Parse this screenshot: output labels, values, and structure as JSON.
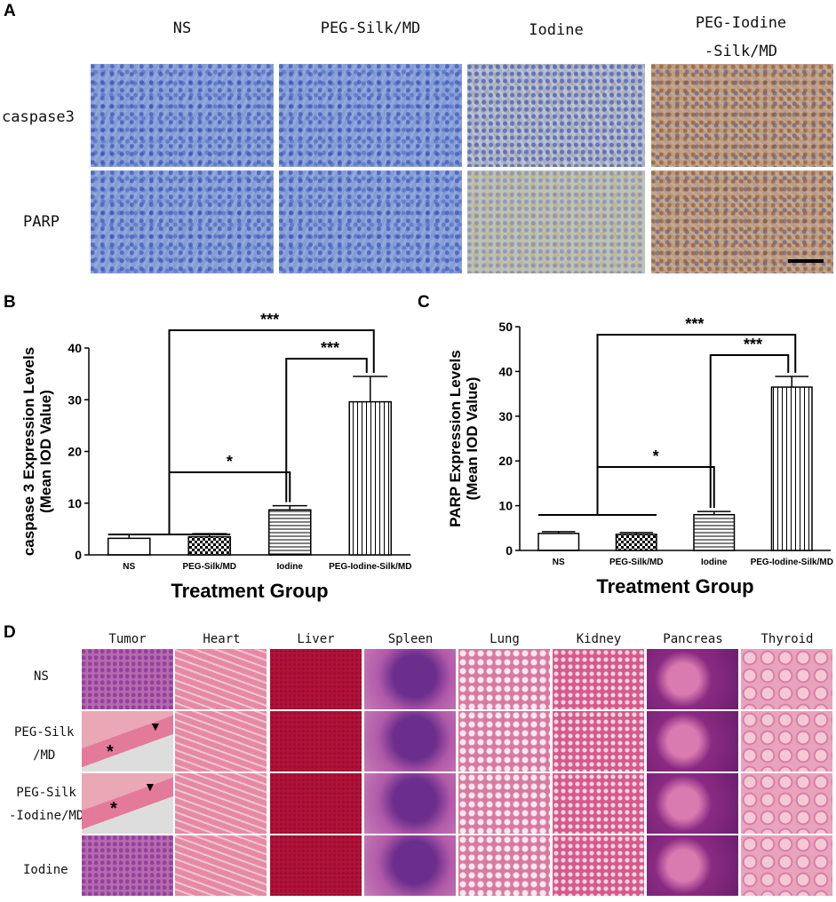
{
  "panel_letters": {
    "a": "A",
    "b": "B",
    "c": "C",
    "d": "D"
  },
  "panel_a": {
    "columns": [
      "NS",
      "PEG-Silk/MD",
      "Iodine",
      "PEG-Iodine\n-Silk/MD"
    ],
    "rows": [
      "caspase3",
      "PARP"
    ]
  },
  "panel_d": {
    "columns": [
      "Tumor",
      "Heart",
      "Liver",
      "Spleen",
      "Lung",
      "Kidney",
      "Pancreas",
      "Thyroid"
    ],
    "rows": [
      "NS",
      "PEG-Silk\n/MD",
      "PEG-Silk\n-Iodine/MD",
      "Iodine"
    ],
    "markers": {
      "arrow": "▼",
      "star": "*"
    }
  },
  "chart_data": [
    {
      "panel": "B",
      "type": "bar",
      "categories": [
        "NS",
        "PEG-Silk/MD",
        "Iodine",
        "PEG-Iodine-Silk/MD"
      ],
      "values": [
        3.2,
        3.5,
        8.7,
        29.6
      ],
      "errors": [
        0.8,
        0.6,
        0.8,
        4.9
      ],
      "ylabel": "caspase 3  Expression Levels\n(Mean IOD Value)",
      "xlabel": "Treatment Group",
      "ylim": [
        0,
        40
      ],
      "yticks": [
        0,
        10,
        20,
        30,
        40
      ],
      "significance": [
        {
          "label": "*",
          "from": 0,
          "to": 2
        },
        {
          "label": "***",
          "from": 2,
          "to": 3
        },
        {
          "label": "***",
          "from": 0,
          "to": 3
        }
      ],
      "patterns": [
        "crosshatch",
        "checker",
        "horizontal",
        "vertical"
      ]
    },
    {
      "panel": "C",
      "type": "bar",
      "categories": [
        "NS",
        "PEG-Silk/MD",
        "Iodine",
        "PEG-Iodine-Silk/MD"
      ],
      "values": [
        3.8,
        3.6,
        8.0,
        36.5
      ],
      "errors": [
        0.4,
        0.4,
        0.7,
        2.4
      ],
      "ylabel": "PARP Expression Levels\n(Mean IOD Value)",
      "xlabel": "Treatment Group",
      "ylim": [
        0,
        50
      ],
      "yticks": [
        0,
        10,
        20,
        30,
        40,
        50
      ],
      "significance": [
        {
          "label": "*",
          "from": 0,
          "to": 2
        },
        {
          "label": "***",
          "from": 2,
          "to": 3
        },
        {
          "label": "***",
          "from": 0,
          "to": 3
        }
      ],
      "patterns": [
        "crosshatch",
        "checker",
        "horizontal",
        "vertical"
      ]
    }
  ]
}
